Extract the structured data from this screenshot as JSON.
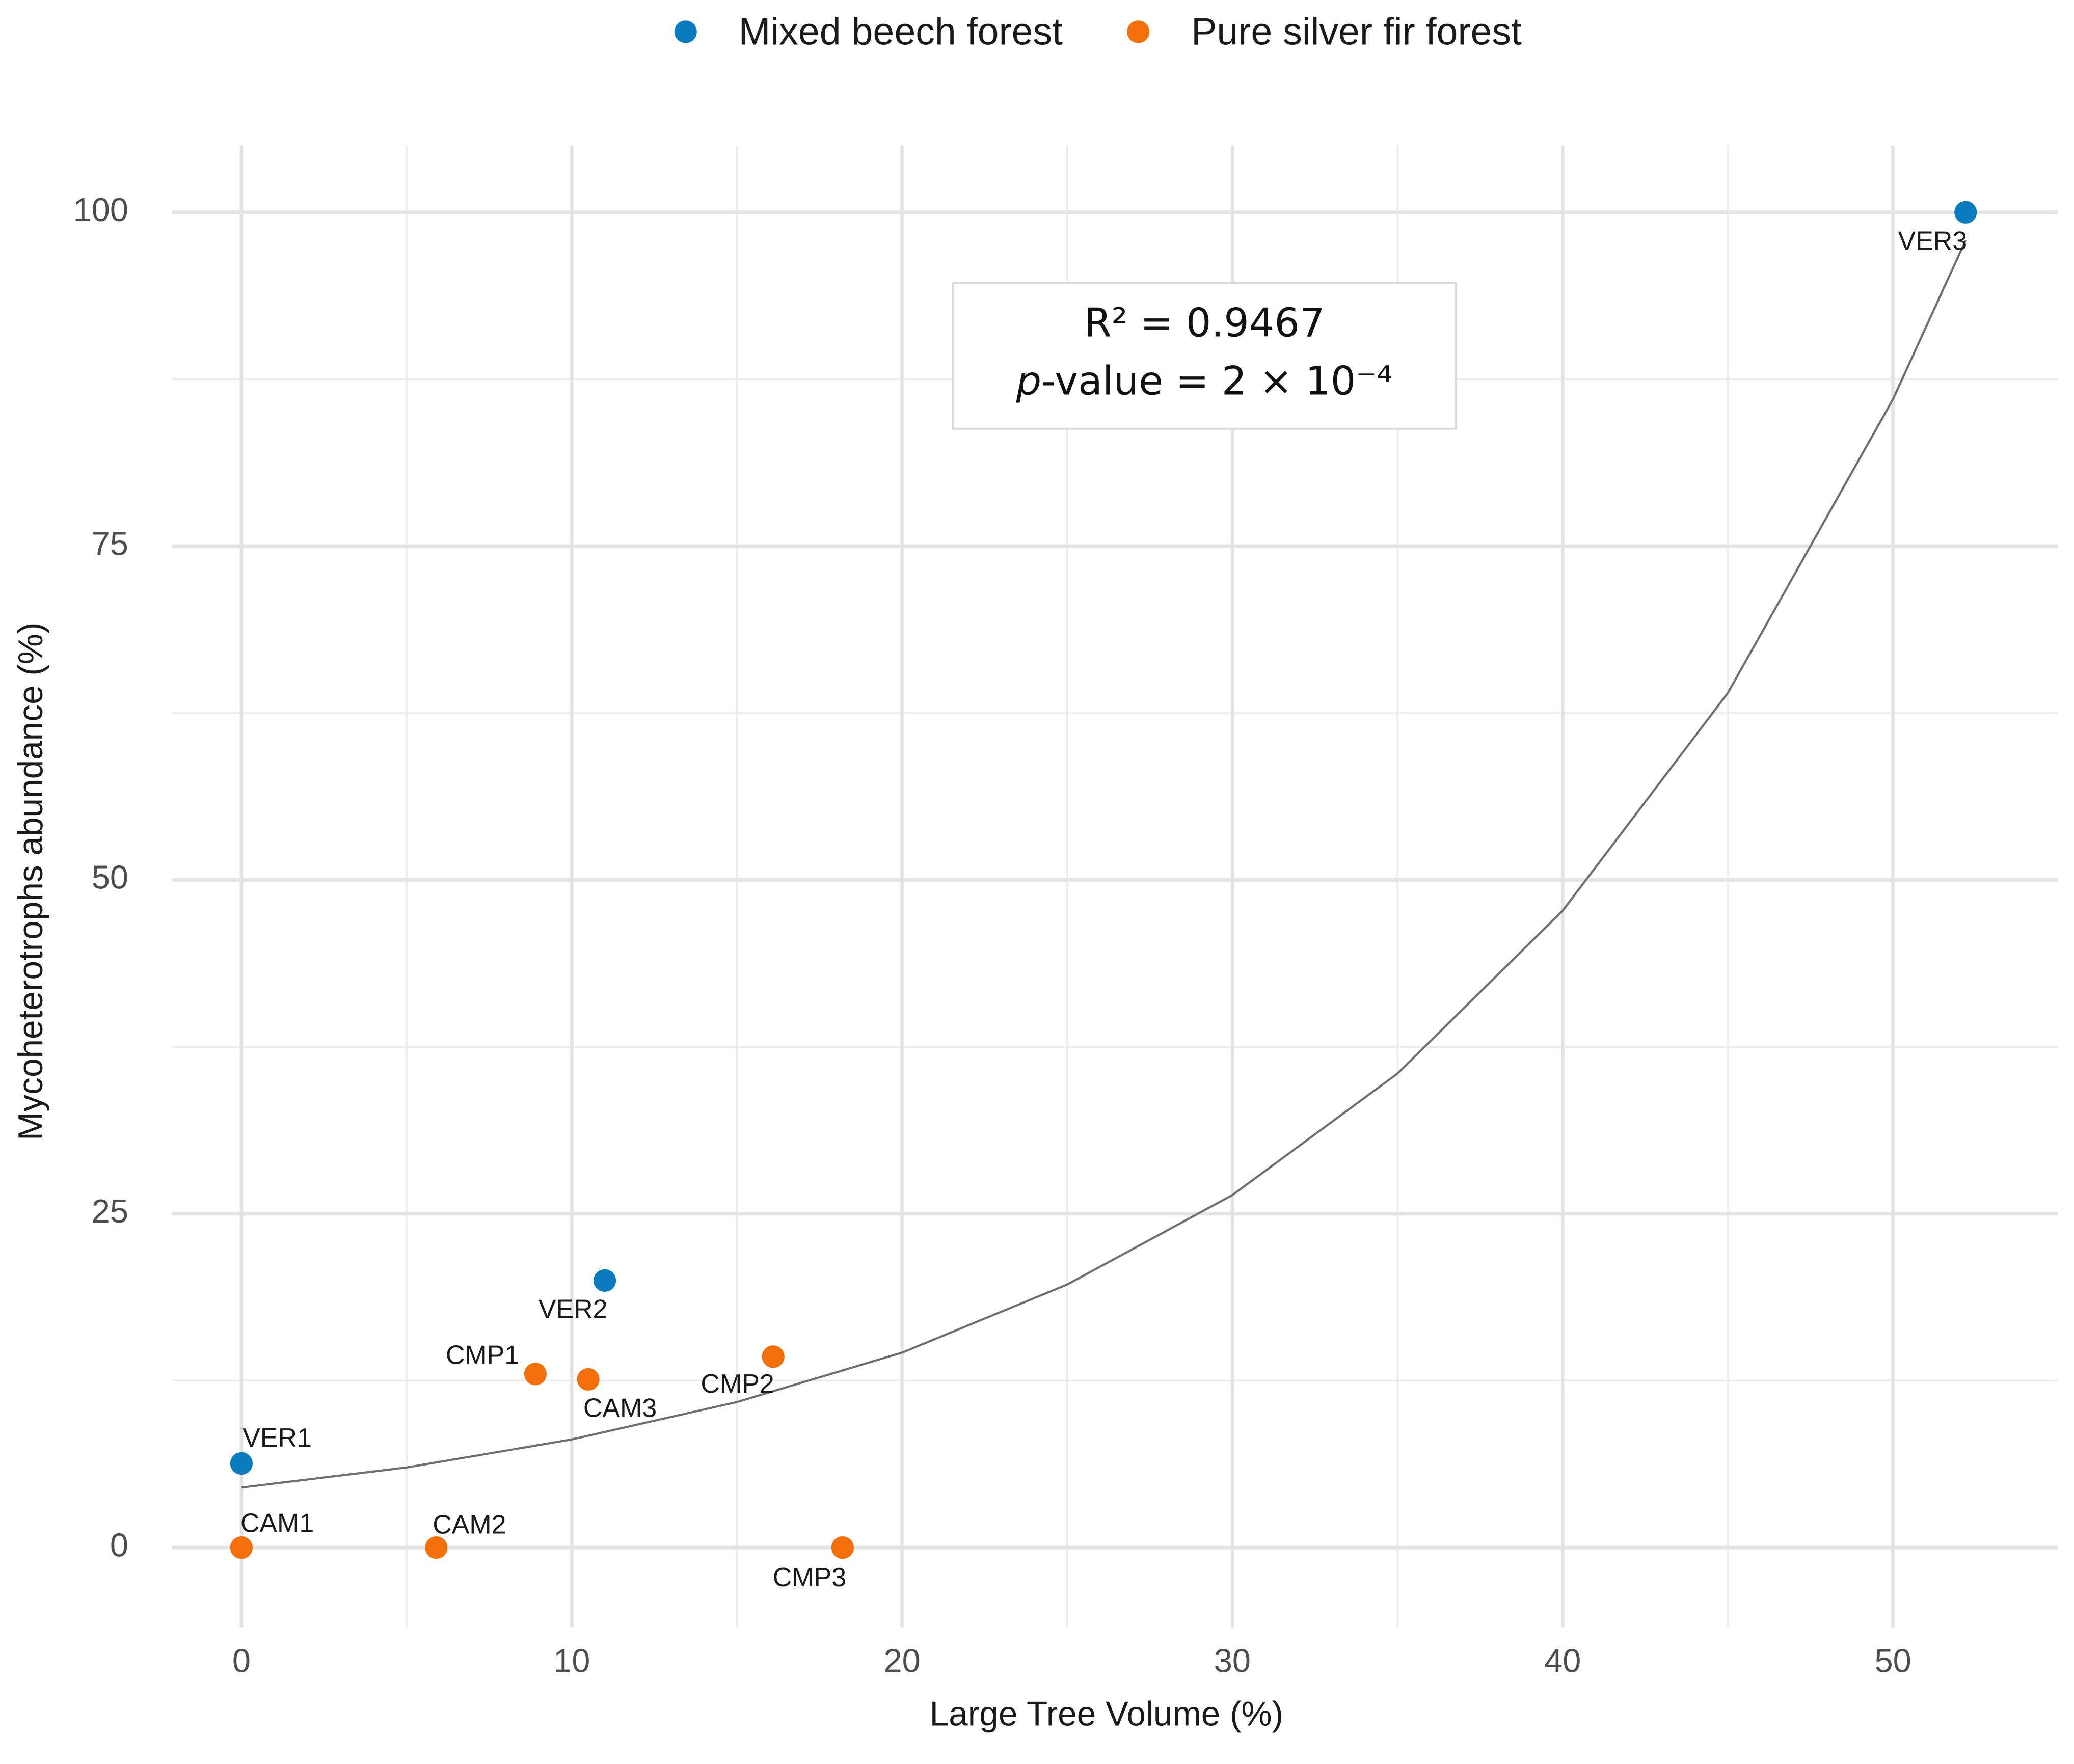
{
  "chart_data": {
    "type": "scatter",
    "x_label": "Large Tree Volume (%)",
    "y_label": "Mycoheterotrophs abundance (%)",
    "xlim": [
      -2.1,
      55
    ],
    "ylim": [
      -6,
      105
    ],
    "xticks": [
      0,
      10,
      20,
      30,
      40,
      50
    ],
    "yticks": [
      0,
      25,
      50,
      75,
      100
    ],
    "minor_xticks": [
      5,
      15,
      25,
      35,
      45
    ],
    "minor_yticks": [
      12.5,
      37.5,
      62.5,
      87.5
    ],
    "grid": true,
    "legend_position": "top",
    "series": [
      {
        "name": "Mixed beech forest",
        "color": "#0a7bbd",
        "x": [
          0,
          11,
          52.2
        ],
        "values": [
          6.3,
          20,
          100
        ],
        "labels": [
          "VER1",
          "VER2",
          "VER3"
        ]
      },
      {
        "name": "Pure silver fir forest",
        "color": "#f36f0a",
        "x": [
          0,
          5.9,
          10.5,
          8.9,
          16.1,
          18.2
        ],
        "values": [
          0,
          0,
          12.6,
          13,
          14.3,
          0
        ],
        "labels": [
          "CAM1",
          "CAM2",
          "CAM3",
          "CMP1",
          "CMP2",
          "CMP3"
        ]
      }
    ],
    "fit": {
      "type": "line",
      "color": "#6e6e6e",
      "x": [
        0,
        5,
        10,
        15,
        20,
        25,
        30,
        35,
        40,
        45,
        50,
        52.2
      ],
      "values": [
        4.5,
        6.0,
        8.1,
        10.9,
        14.6,
        19.7,
        26.4,
        35.5,
        47.7,
        64.0,
        86.0,
        97.9
      ]
    },
    "annotation": {
      "r2": "R² = 0.9467",
      "p_italic": "p",
      "p_rest": "-value =  2 × 10⁻⁴"
    }
  }
}
